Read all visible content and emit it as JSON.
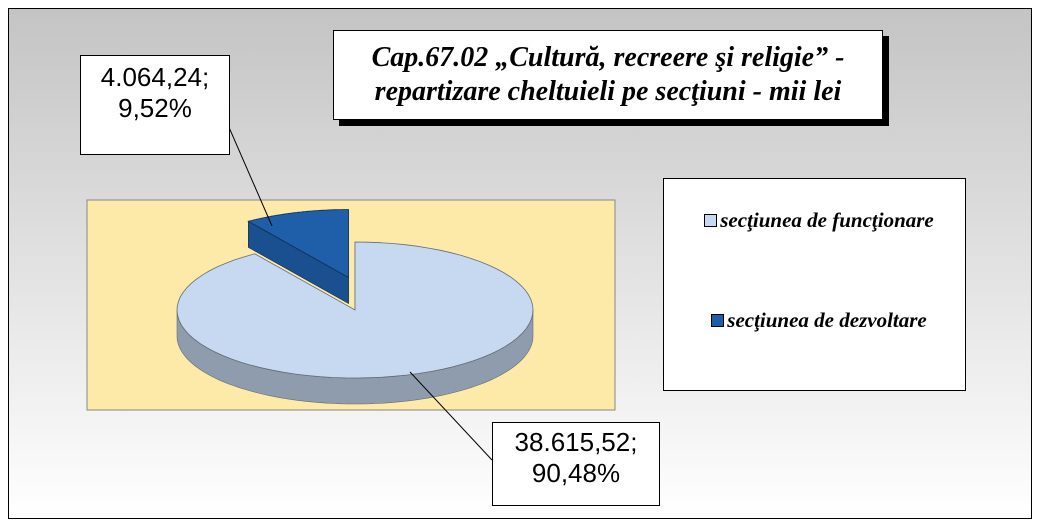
{
  "chart_data": {
    "type": "pie",
    "title": [
      "Cap.67.02 „Cultură, recreere şi religie” -",
      "repartizare cheltuieli pe secţiuni - mii lei"
    ],
    "categories": [
      "secţiunea de funcţionare",
      "secţiunea de dezvoltare"
    ],
    "values": [
      38615.52,
      4064.24
    ],
    "value_labels": [
      "38.615,52;",
      "4.064,24;"
    ],
    "percents": [
      90.48,
      9.52
    ],
    "percent_labels": [
      "90,48%",
      "9,52%"
    ],
    "colors": [
      "#c6d9f0",
      "#1f5ea8"
    ],
    "legend": "right"
  }
}
